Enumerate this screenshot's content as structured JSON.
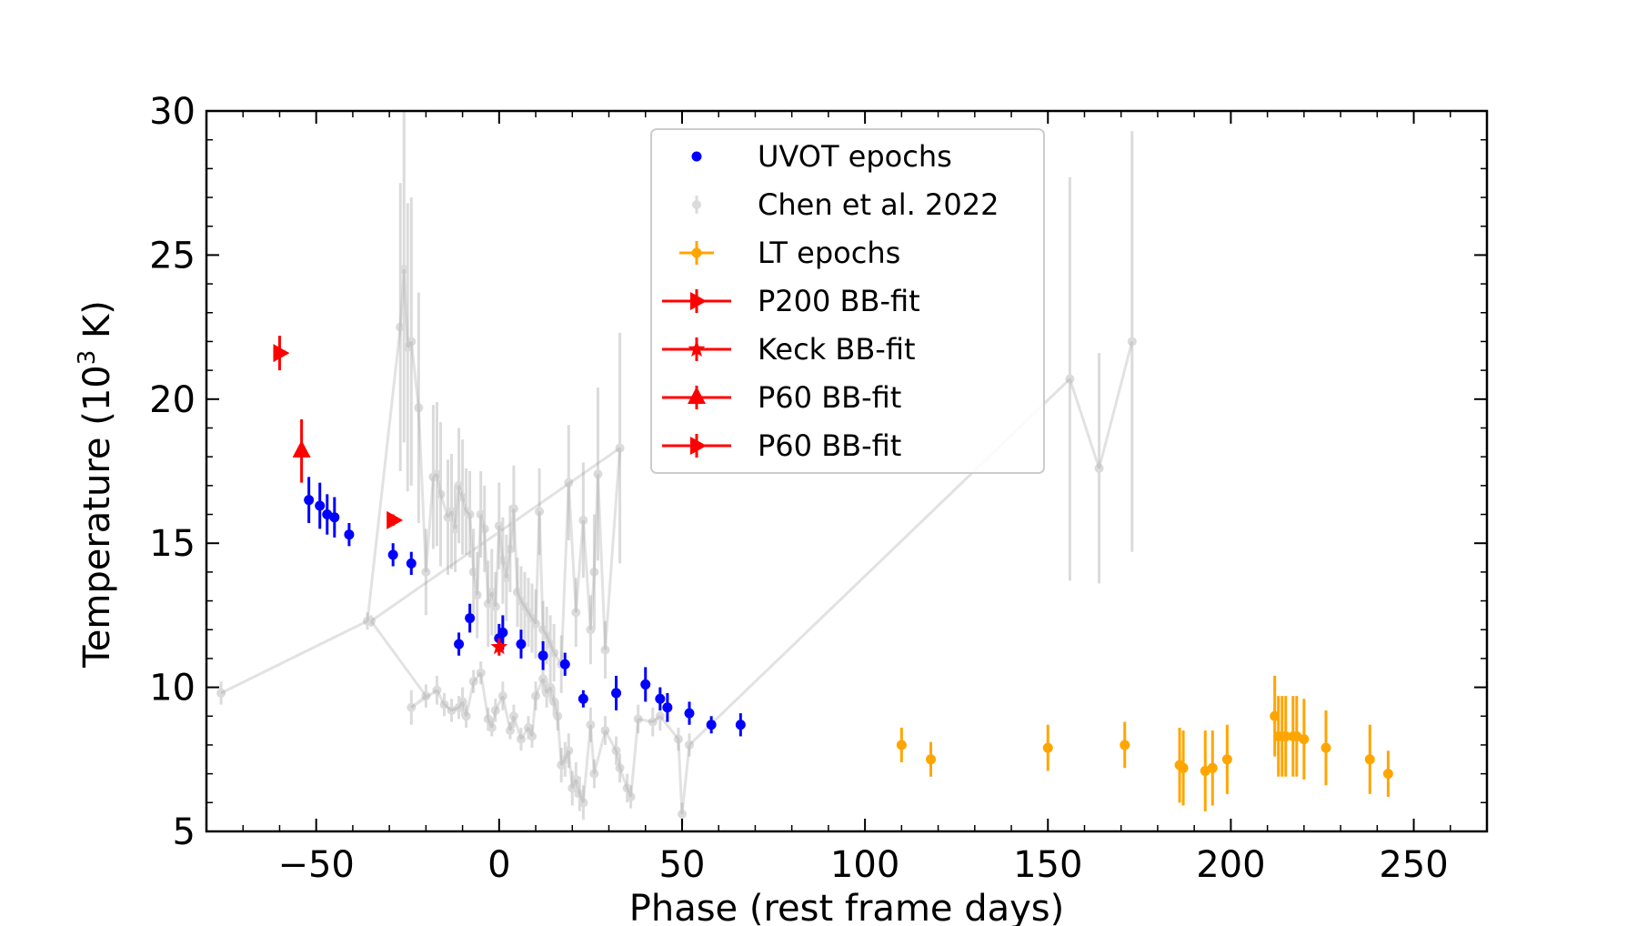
{
  "chart_data": {
    "type": "scatter",
    "xlabel": "Phase (rest frame days)",
    "ylabel_main": "Temperature (10",
    "ylabel_sup": "3",
    "ylabel_end": " K)",
    "xlim": [
      -80,
      270
    ],
    "ylim": [
      5,
      30
    ],
    "xticks": [
      -50,
      0,
      50,
      100,
      150,
      200,
      250
    ],
    "xtick_labels": [
      "−50",
      "0",
      "50",
      "100",
      "150",
      "200",
      "250"
    ],
    "yticks": [
      5,
      10,
      15,
      20,
      25,
      30
    ],
    "ytick_labels": [
      "5",
      "10",
      "15",
      "20",
      "25",
      "30"
    ],
    "legend": [
      "UVOT epochs",
      "Chen et al. 2022",
      "LT epochs",
      "P200 BB-fit",
      "Keck BB-fit",
      "P60 BB-fit",
      "P60 BB-fit"
    ],
    "legend_position": "upper-center",
    "colors": {
      "uvot": "#0000ff",
      "chen": "#999999",
      "lt": "#ffa500",
      "bb": "#ff0000"
    },
    "series": [
      {
        "name": "UVOT epochs",
        "style": "dot",
        "points": [
          [
            -52,
            16.5,
            0.8
          ],
          [
            -49,
            16.3,
            0.8
          ],
          [
            -47,
            16.0,
            0.7
          ],
          [
            -45,
            15.9,
            0.7
          ],
          [
            -41,
            15.3,
            0.4
          ],
          [
            -29,
            14.6,
            0.4
          ],
          [
            -24,
            14.3,
            0.4
          ],
          [
            -11,
            11.5,
            0.4
          ],
          [
            -8,
            12.4,
            0.5
          ],
          [
            0,
            11.7,
            0.5
          ],
          [
            1,
            11.9,
            0.6
          ],
          [
            6,
            11.5,
            0.5
          ],
          [
            12,
            11.1,
            0.5
          ],
          [
            18,
            10.8,
            0.4
          ],
          [
            23,
            9.6,
            0.3
          ],
          [
            32,
            9.8,
            0.6
          ],
          [
            40,
            10.1,
            0.6
          ],
          [
            44,
            9.6,
            0.4
          ],
          [
            46,
            9.3,
            0.5
          ],
          [
            52,
            9.1,
            0.4
          ],
          [
            58,
            8.7,
            0.3
          ],
          [
            66,
            8.7,
            0.4
          ]
        ]
      },
      {
        "name": "LT epochs",
        "style": "dot",
        "points": [
          [
            110,
            8.0,
            0.6
          ],
          [
            118,
            7.5,
            0.6
          ],
          [
            150,
            7.9,
            0.8
          ],
          [
            171,
            8.0,
            0.8
          ],
          [
            186,
            7.3,
            1.3
          ],
          [
            187,
            7.2,
            1.3
          ],
          [
            193,
            7.1,
            1.4
          ],
          [
            195,
            7.2,
            1.3
          ],
          [
            199,
            7.5,
            1.2
          ],
          [
            212,
            9.0,
            1.4
          ],
          [
            213,
            8.3,
            1.4
          ],
          [
            214,
            8.3,
            1.4
          ],
          [
            215,
            8.3,
            1.4
          ],
          [
            217,
            8.3,
            1.4
          ],
          [
            218,
            8.3,
            1.4
          ],
          [
            220,
            8.2,
            1.4
          ],
          [
            226,
            7.9,
            1.3
          ],
          [
            238,
            7.5,
            1.2
          ],
          [
            243,
            7.0,
            0.8
          ]
        ]
      },
      {
        "name": "Chen et al. 2022",
        "style": "line",
        "points": [
          [
            -76,
            9.8,
            0.4
          ],
          [
            -36,
            12.3,
            0.3
          ],
          [
            -27,
            22.5,
            5.0
          ],
          [
            -26,
            24.5,
            6.0
          ],
          [
            -25,
            21.8,
            5.0
          ],
          [
            -24,
            22.0,
            5.0
          ],
          [
            -22,
            19.7,
            4.0
          ],
          [
            -20,
            14.0,
            1.5
          ],
          [
            -18,
            17.3,
            2.5
          ],
          [
            -17,
            17.4,
            2.5
          ],
          [
            -16,
            16.7,
            2.5
          ],
          [
            -14,
            15.9,
            2.0
          ],
          [
            -13,
            16.1,
            2.0
          ],
          [
            -12,
            15.5,
            1.5
          ],
          [
            -11,
            17.0,
            2.0
          ],
          [
            -10,
            16.6,
            2.0
          ],
          [
            -9,
            16.1,
            1.5
          ],
          [
            -8,
            16.0,
            1.5
          ],
          [
            -7,
            14.0,
            1.5
          ],
          [
            -6,
            13.2,
            1.5
          ],
          [
            -5,
            16.0,
            1.5
          ],
          [
            -4,
            15.5,
            1.5
          ],
          [
            -3,
            12.9,
            1.5
          ],
          [
            -2,
            13.3,
            1.5
          ],
          [
            -1,
            12.8,
            1.2
          ],
          [
            0,
            15.6,
            1.5
          ],
          [
            1,
            14.4,
            1.5
          ],
          [
            2,
            13.8,
            1.5
          ],
          [
            3,
            14.8,
            1.5
          ],
          [
            4,
            16.2,
            1.5
          ],
          [
            5,
            13.3,
            1.2
          ],
          [
            6,
            13.0,
            1.2
          ],
          [
            7,
            12.8,
            1.2
          ],
          [
            8,
            12.6,
            1.2
          ],
          [
            9,
            12.4,
            1.2
          ],
          [
            10,
            12.2,
            1.2
          ],
          [
            11,
            16.1,
            1.5
          ],
          [
            12,
            12.0,
            1.0
          ],
          [
            13,
            11.8,
            1.0
          ],
          [
            14,
            11.5,
            1.0
          ],
          [
            15,
            11.2,
            1.0
          ],
          [
            17,
            10.8,
            1.0
          ],
          [
            19,
            17.1,
            2.0
          ],
          [
            21,
            12.6,
            1.2
          ],
          [
            23,
            15.8,
            2.0
          ],
          [
            25,
            12.0,
            1.2
          ],
          [
            26,
            14.0,
            2.0
          ],
          [
            27,
            17.4,
            3.0
          ],
          [
            29,
            11.3,
            1.0
          ],
          [
            33,
            18.3,
            4.0
          ],
          [
            -35,
            12.3,
            0.2
          ],
          [
            -20,
            9.7,
            0.4
          ],
          [
            -24,
            9.3,
            0.6
          ],
          [
            -17,
            9.9,
            0.5
          ],
          [
            -15,
            9.4,
            0.4
          ],
          [
            -13,
            9.2,
            0.4
          ],
          [
            -11,
            9.3,
            0.4
          ],
          [
            -10,
            9.5,
            0.5
          ],
          [
            -9,
            9.0,
            0.4
          ],
          [
            -7,
            10.2,
            0.4
          ],
          [
            -5,
            10.5,
            0.4
          ],
          [
            -3,
            8.9,
            0.4
          ],
          [
            -2,
            8.6,
            0.3
          ],
          [
            -1,
            9.2,
            0.4
          ],
          [
            1,
            9.7,
            0.5
          ],
          [
            3,
            8.5,
            0.3
          ],
          [
            4,
            9.0,
            0.4
          ],
          [
            6,
            8.2,
            0.4
          ],
          [
            8,
            8.6,
            0.4
          ],
          [
            9,
            8.3,
            0.4
          ],
          [
            10,
            9.7,
            0.5
          ],
          [
            12,
            10.3,
            0.5
          ],
          [
            13,
            9.8,
            0.5
          ],
          [
            14,
            10.0,
            0.5
          ],
          [
            15,
            9.5,
            0.5
          ],
          [
            16,
            9.0,
            0.5
          ],
          [
            17,
            7.3,
            0.6
          ],
          [
            18,
            7.5,
            0.6
          ],
          [
            19,
            7.8,
            0.6
          ],
          [
            20,
            6.5,
            0.6
          ],
          [
            21,
            6.8,
            0.6
          ],
          [
            22,
            6.3,
            0.6
          ],
          [
            23,
            6.0,
            0.6
          ],
          [
            25,
            8.7,
            0.6
          ],
          [
            26,
            7.0,
            0.5
          ],
          [
            29,
            8.5,
            0.5
          ],
          [
            32,
            7.8,
            0.5
          ],
          [
            33,
            7.2,
            0.5
          ],
          [
            35,
            6.5,
            0.5
          ],
          [
            36,
            6.2,
            0.4
          ],
          [
            38,
            8.9,
            0.5
          ],
          [
            42,
            8.8,
            0.5
          ],
          [
            44,
            9.0,
            0.5
          ],
          [
            49,
            8.2,
            0.4
          ],
          [
            50,
            5.6,
            0.4
          ],
          [
            52,
            8.0,
            0.4
          ],
          [
            156,
            20.7,
            7.0
          ],
          [
            164,
            17.6,
            4.0
          ],
          [
            173,
            22.0,
            7.3
          ]
        ]
      },
      {
        "name": "P200 BB-fit",
        "style": "tri-right",
        "points": [
          [
            -60,
            21.6,
            0.6
          ]
        ]
      },
      {
        "name": "Keck BB-fit",
        "style": "star",
        "points": [
          [
            0,
            11.4,
            0.3
          ]
        ]
      },
      {
        "name": "P60 BB-fit",
        "style": "tri-up",
        "points": [
          [
            -54,
            18.2,
            1.1
          ]
        ]
      },
      {
        "name": "P60 BB-fit",
        "style": "tri-right",
        "points": [
          [
            -29,
            15.8,
            0.2
          ]
        ]
      }
    ]
  }
}
